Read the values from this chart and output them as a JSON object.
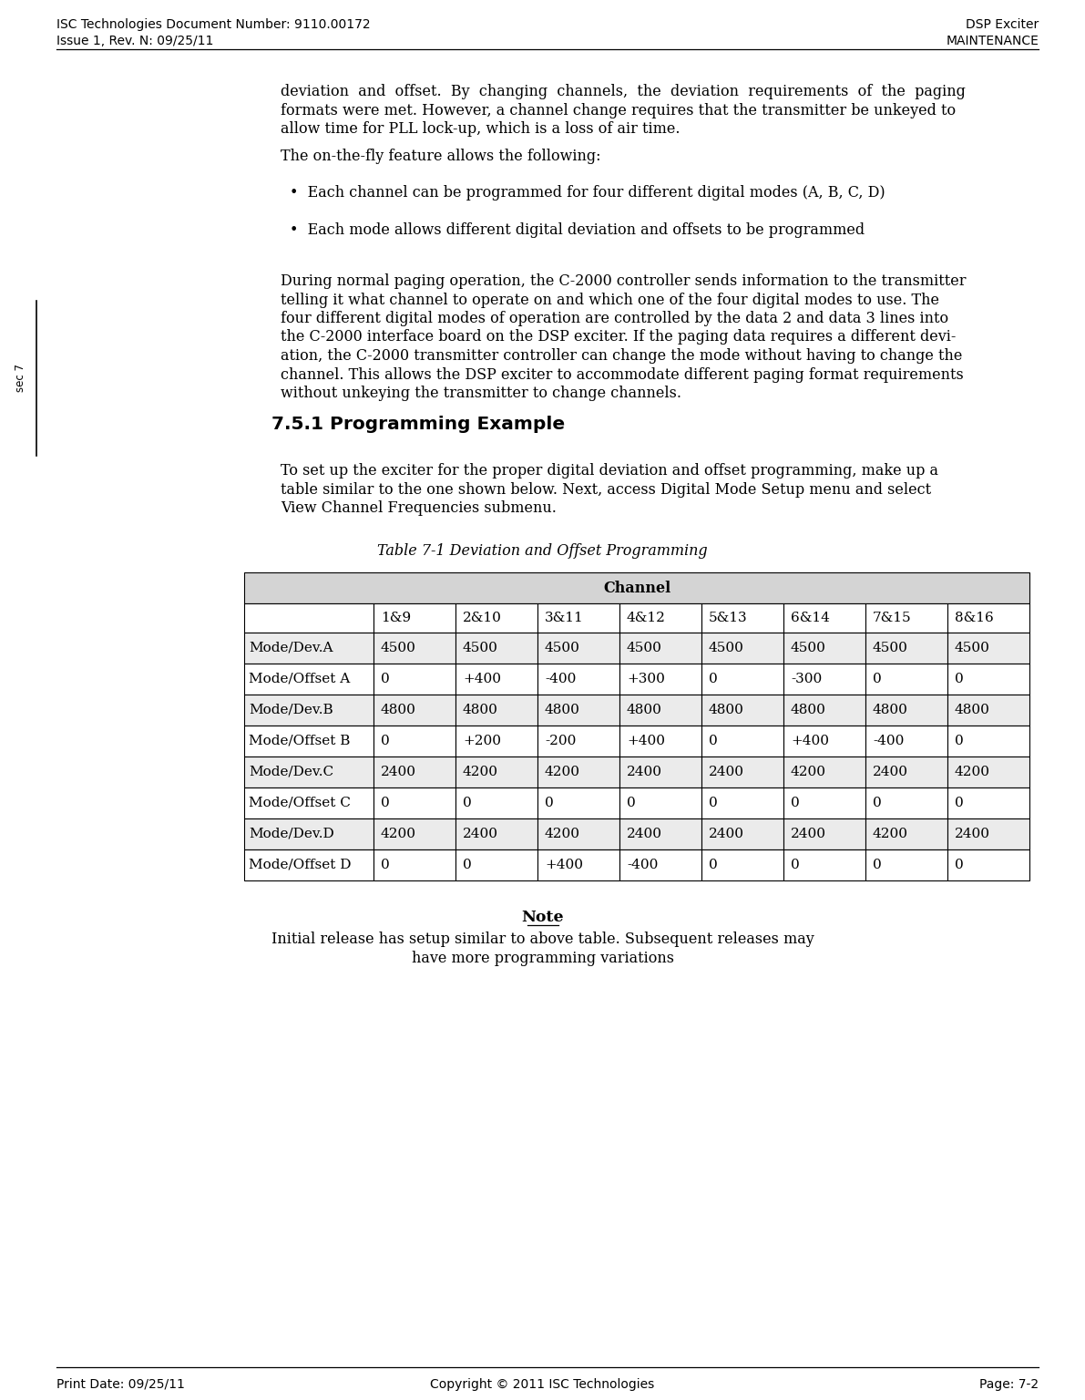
{
  "header_left_line1": "ISC Technologies Document Number: 9110.00172",
  "header_left_line2": "Issue 1, Rev. N: 09/25/11",
  "header_right_line1": "DSP Exciter",
  "header_right_line2": "MAINTENANCE",
  "footer_left": "Print Date: 09/25/11",
  "footer_center": "Copyright © 2011 ISC Technologies",
  "footer_right": "Page: 7-2",
  "sidebar_text": "sec 7",
  "body_line1a": "deviation  and  offset.  By  changing  channels,  the  deviation  requirements  of  the  paging",
  "body_line1b": "formats were met. However, a channel change requires that the transmitter be unkeyed to",
  "body_line1c": "allow time for PLL lock-up, which is a loss of air time.",
  "body_text_2": "The on-the-fly feature allows the following:",
  "bullet_1": "•  Each channel can be programmed for four different digital modes (A, B, C, D)",
  "bullet_2": "•  Each mode allows different digital deviation and offsets to be programmed",
  "body_line3a": "During normal paging operation, the C-2000 controller sends information to the transmitter",
  "body_line3b": "telling it what channel to operate on and which one of the four digital modes to use. The",
  "body_line3c": "four different digital modes of operation are controlled by the data 2 and data 3 lines into",
  "body_line3d": "the C-2000 interface board on the DSP exciter. If the paging data requires a different devi-",
  "body_line3e": "ation, the C-2000 transmitter controller can change the mode without having to change the",
  "body_line3f": "channel. This allows the DSP exciter to accommodate different paging format requirements",
  "body_line3g": "without unkeying the transmitter to change channels.",
  "section_title": "7.5.1 Programming Example",
  "body_line4a": "To set up the exciter for the proper digital deviation and offset programming, make up a",
  "body_line4b": "table similar to the one shown below. Next, access Digital Mode Setup menu and select",
  "body_line4c": "View Channel Frequencies submenu.",
  "table_title": "Table 7-1 Deviation and Offset Programming",
  "table_header_main": "Channel",
  "table_columns": [
    "",
    "1&9",
    "2&10",
    "3&11",
    "4&12",
    "5&13",
    "6&14",
    "7&15",
    "8&16"
  ],
  "table_rows": [
    [
      "Mode/Dev.A",
      "4500",
      "4500",
      "4500",
      "4500",
      "4500",
      "4500",
      "4500",
      "4500"
    ],
    [
      "Mode/Offset A",
      "0",
      "+400",
      "-400",
      "+300",
      "0",
      "-300",
      "0",
      "0"
    ],
    [
      "Mode/Dev.B",
      "4800",
      "4800",
      "4800",
      "4800",
      "4800",
      "4800",
      "4800",
      "4800"
    ],
    [
      "Mode/Offset B",
      "0",
      "+200",
      "-200",
      "+400",
      "0",
      "+400",
      "-400",
      "0"
    ],
    [
      "Mode/Dev.C",
      "2400",
      "4200",
      "4200",
      "2400",
      "2400",
      "4200",
      "2400",
      "4200"
    ],
    [
      "Mode/Offset C",
      "0",
      "0",
      "0",
      "0",
      "0",
      "0",
      "0",
      "0"
    ],
    [
      "Mode/Dev.D",
      "4200",
      "2400",
      "4200",
      "2400",
      "2400",
      "2400",
      "4200",
      "2400"
    ],
    [
      "Mode/Offset D",
      "0",
      "0",
      "+400",
      "-400",
      "0",
      "0",
      "0",
      "0"
    ]
  ],
  "note_title": "Note",
  "note_line1": "Initial release has setup similar to above table. Subsequent releases may",
  "note_line2": "have more programming variations",
  "bg_color": "#ffffff",
  "text_color": "#000000",
  "table_bg_dark": "#d4d4d4",
  "table_bg_light": "#ebebeb",
  "table_bg_white": "#ffffff",
  "body_fontsize": 11.5,
  "header_fontsize": 10.0,
  "section_fontsize": 14.5,
  "table_fontsize": 11.0,
  "note_fontsize": 11.5
}
